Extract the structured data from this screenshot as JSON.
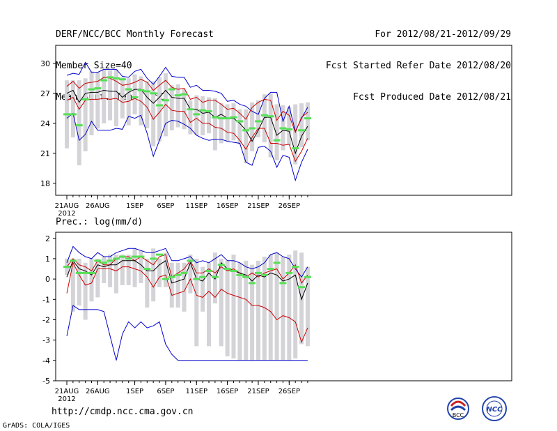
{
  "header": {
    "left": [
      "DERF/NCC/BCC Monthly Forecast",
      "Member Size=40",
      "Mean Surf. Temp.: °C"
    ],
    "right": [
      "For 2012/08/21-2012/09/29",
      "Fcst Started Refer Date 2012/08/20",
      "Fcst Produced Date 2012/08/21"
    ]
  },
  "precip_label": "Prec.: log(mm/d)",
  "url": "http://cmdp.ncc.cma.gov.cn",
  "credit": "GrADS: COLA/IGES",
  "logos": {
    "left": "BCC",
    "right": "NCC"
  },
  "colors": {
    "bar": "#d3d3d8",
    "green": "#55e055",
    "blue": "#0000cc",
    "red": "#cc0000",
    "mean": "#000000"
  },
  "chart_data": [
    {
      "type": "line",
      "title": "Mean Surf. Temp.: °C",
      "ylim": [
        16.8,
        31.8
      ],
      "yticks": [
        18,
        21,
        24,
        27,
        30
      ],
      "xtick_labels": [
        "21AUG",
        "26AUG",
        "1SEP",
        "6SEP",
        "11SEP",
        "16SEP",
        "21SEP",
        "26SEP"
      ],
      "xtick_days": [
        0,
        5,
        11,
        16,
        21,
        26,
        31,
        36
      ],
      "year_label": "2012",
      "days": 40,
      "series": [
        {
          "name": "max",
          "values": [
            28.8,
            29.0,
            28.9,
            30.1,
            29.1,
            29.1,
            29.4,
            29.4,
            29.4,
            28.7,
            28.6,
            29.2,
            29.4,
            28.5,
            27.9,
            28.7,
            29.6,
            28.7,
            28.6,
            28.6,
            27.6,
            27.8,
            27.3,
            27.3,
            27.2,
            27.0,
            26.2,
            26.3,
            25.9,
            25.7,
            25.2,
            24.9,
            26.5,
            27.1,
            27.1,
            24.2,
            25.7,
            23.2,
            24.5,
            25.6
          ]
        },
        {
          "name": "p90",
          "values": [
            27.7,
            28.2,
            27.5,
            28.0,
            28.1,
            28.2,
            28.6,
            28.5,
            28.2,
            27.8,
            27.9,
            28.1,
            28.4,
            28.1,
            27.3,
            27.8,
            28.3,
            27.6,
            27.4,
            27.5,
            26.4,
            26.6,
            26.1,
            26.3,
            26.3,
            25.9,
            25.4,
            25.5,
            25.0,
            24.4,
            25.6,
            26.1,
            26.4,
            26.3,
            24.3,
            25.2,
            24.8,
            23.1,
            24.6,
            25.1
          ]
        },
        {
          "name": "mean",
          "values": [
            27.0,
            27.3,
            26.1,
            27.0,
            27.1,
            27.1,
            27.3,
            27.2,
            27.2,
            26.6,
            27.1,
            27.4,
            27.4,
            26.6,
            26.0,
            26.6,
            27.3,
            26.6,
            26.5,
            26.5,
            25.4,
            25.4,
            25.0,
            25.1,
            24.6,
            24.9,
            24.5,
            24.5,
            24.0,
            23.3,
            22.2,
            23.3,
            24.6,
            24.6,
            22.8,
            23.3,
            23.2,
            21.0,
            22.7,
            23.7
          ]
        },
        {
          "name": "p10",
          "values": [
            26.3,
            26.6,
            25.4,
            26.3,
            26.4,
            26.4,
            26.5,
            26.4,
            26.5,
            26.1,
            26.2,
            26.5,
            26.2,
            25.6,
            24.4,
            25.1,
            25.9,
            25.3,
            25.2,
            25.2,
            24.1,
            24.5,
            24.0,
            24.0,
            23.6,
            23.5,
            23.1,
            23.0,
            22.3,
            21.4,
            22.6,
            23.5,
            23.5,
            22.0,
            22.0,
            21.8,
            21.9,
            20.2,
            21.2,
            22.5
          ]
        },
        {
          "name": "min",
          "values": [
            24.5,
            25.0,
            22.3,
            22.9,
            24.2,
            23.3,
            23.3,
            23.3,
            23.5,
            23.4,
            24.7,
            24.5,
            24.8,
            23.0,
            20.7,
            22.3,
            24.0,
            24.3,
            24.2,
            23.9,
            23.5,
            22.8,
            22.5,
            22.3,
            22.4,
            22.4,
            22.2,
            22.1,
            22.0,
            20.1,
            19.8,
            21.6,
            21.7,
            21.2,
            19.6,
            20.8,
            20.6,
            18.3,
            20.1,
            21.4
          ]
        },
        {
          "name": "green",
          "values": [
            24.9,
            24.9,
            23.8,
            26.4,
            27.4,
            27.5,
            28.3,
            28.6,
            28.5,
            28.4,
            27.4,
            26.6,
            27.3,
            27.2,
            27.0,
            25.8,
            26.3,
            27.4,
            26.8,
            26.9,
            25.4,
            24.9,
            25.3,
            25.2,
            24.6,
            24.5,
            24.5,
            24.6,
            24.2,
            23.3,
            23.5,
            24.2,
            24.8,
            24.7,
            22.3,
            23.5,
            23.4,
            21.5,
            23.3,
            24.5
          ]
        },
        {
          "name": "bar_top",
          "values": [
            28.3,
            28.3,
            28.3,
            28.5,
            29.2,
            29.1,
            29.4,
            29.3,
            29.4,
            28.6,
            28.5,
            28.9,
            28.7,
            28.2,
            28.2,
            28.6,
            29.0,
            27.8,
            27.9,
            27.4,
            26.3,
            26.8,
            26.7,
            26.6,
            26.5,
            26.0,
            25.9,
            26.0,
            25.4,
            25.4,
            26.1,
            26.3,
            26.9,
            27.0,
            25.9,
            25.8,
            25.6,
            25.9,
            26.0,
            26.1
          ]
        },
        {
          "name": "bar_bottom",
          "values": [
            21.5,
            22.6,
            19.8,
            21.2,
            22.8,
            23.5,
            24.0,
            24.3,
            23.7,
            24.5,
            23.8,
            24.9,
            23.8,
            23.5,
            21.7,
            22.2,
            22.7,
            23.3,
            23.6,
            23.4,
            22.9,
            22.8,
            22.8,
            23.0,
            21.3,
            22.0,
            22.2,
            22.3,
            21.9,
            20.0,
            21.2,
            22.6,
            22.1,
            20.6,
            20.3,
            21.3,
            21.8,
            19.9,
            21.6,
            22.3
          ]
        }
      ]
    },
    {
      "type": "line",
      "title": "Prec.: log(mm/d)",
      "ylim": [
        -5,
        2.3
      ],
      "yticks": [
        -5,
        -4,
        -3,
        -2,
        -1,
        0,
        1,
        2
      ],
      "xtick_labels": [
        "21AUG",
        "26AUG",
        "1SEP",
        "6SEP",
        "11SEP",
        "16SEP",
        "21SEP",
        "26SEP"
      ],
      "xtick_days": [
        0,
        5,
        11,
        16,
        21,
        26,
        31,
        36
      ],
      "year_label": "2012",
      "days": 40,
      "series": [
        {
          "name": "max",
          "values": [
            0.8,
            1.6,
            1.3,
            1.1,
            1.0,
            1.3,
            1.1,
            1.1,
            1.3,
            1.4,
            1.5,
            1.5,
            1.4,
            1.3,
            1.3,
            1.4,
            1.5,
            0.9,
            0.9,
            1.0,
            1.1,
            0.8,
            0.9,
            0.8,
            1.0,
            1.2,
            0.9,
            0.9,
            0.8,
            0.6,
            0.5,
            0.6,
            0.8,
            1.2,
            1.3,
            1.1,
            1.0,
            0.5,
            0.1,
            0.6
          ]
        },
        {
          "name": "p90",
          "values": [
            0.6,
            1.0,
            0.7,
            0.6,
            0.4,
            0.9,
            0.7,
            0.7,
            1.0,
            1.1,
            1.1,
            0.9,
            1.1,
            0.9,
            0.7,
            1.1,
            1.2,
            0.1,
            0.3,
            0.5,
            0.9,
            0.3,
            0.3,
            0.5,
            0.3,
            0.6,
            0.4,
            0.5,
            0.3,
            0.1,
            0.3,
            0.1,
            0.3,
            0.4,
            0.5,
            0.0,
            0.3,
            0.7,
            -0.2,
            0.2
          ]
        },
        {
          "name": "mean",
          "values": [
            0.1,
            0.9,
            0.5,
            0.4,
            0.2,
            0.7,
            0.6,
            0.7,
            0.7,
            0.9,
            0.9,
            0.9,
            0.7,
            0.4,
            0.4,
            0.7,
            0.9,
            -0.2,
            -0.1,
            0.0,
            0.8,
            0.0,
            -0.1,
            0.3,
            0.0,
            0.8,
            0.5,
            0.4,
            0.3,
            0.2,
            -0.1,
            0.2,
            0.1,
            0.3,
            0.2,
            -0.1,
            0.0,
            0.2,
            -1.0,
            -0.2
          ]
        },
        {
          "name": "p10",
          "values": [
            -0.7,
            0.8,
            0.2,
            -0.3,
            -0.2,
            0.5,
            0.5,
            0.5,
            0.4,
            0.6,
            0.6,
            0.5,
            0.4,
            0.1,
            -0.4,
            0.1,
            0.2,
            -0.8,
            -0.7,
            -0.6,
            0.0,
            -0.8,
            -0.9,
            -0.6,
            -0.9,
            -0.5,
            -0.7,
            -0.8,
            -0.9,
            -1.0,
            -1.3,
            -1.3,
            -1.4,
            -1.6,
            -2.0,
            -1.8,
            -1.9,
            -2.1,
            -3.1,
            -2.4
          ]
        },
        {
          "name": "min",
          "values": [
            -2.8,
            -1.3,
            -1.5,
            -1.5,
            -1.5,
            -1.5,
            -1.6,
            -2.8,
            -4.0,
            -2.7,
            -2.1,
            -2.4,
            -2.1,
            -2.4,
            -2.3,
            -2.1,
            -3.2,
            -3.7,
            -4.0,
            -4.0,
            -4.0,
            -4.0,
            -4.0,
            -4.0,
            -4.0,
            -4.0,
            -4.0,
            -4.0,
            -4.0,
            -4.0,
            -4.0,
            -4.0,
            -4.0,
            -4.0,
            -4.0,
            -4.0,
            -4.0,
            -4.0,
            -4.0,
            -4.0
          ]
        },
        {
          "name": "green",
          "values": [
            0.6,
            0.9,
            0.3,
            0.3,
            0.3,
            0.9,
            0.8,
            0.9,
            1.0,
            1.1,
            1.0,
            1.1,
            1.1,
            0.5,
            1.0,
            1.2,
            0.0,
            0.1,
            0.2,
            0.3,
            0.9,
            0.0,
            0.1,
            0.4,
            0.1,
            0.7,
            0.5,
            0.4,
            0.2,
            0.1,
            -0.2,
            0.3,
            0.2,
            0.5,
            0.8,
            -0.2,
            0.3,
            0.6,
            -0.4,
            0.1
          ]
        },
        {
          "name": "bar_top",
          "values": [
            1.0,
            1.0,
            1.0,
            0.8,
            1.0,
            1.0,
            1.1,
            1.2,
            1.2,
            1.2,
            1.2,
            1.5,
            1.4,
            1.0,
            1.5,
            1.0,
            1.3,
            0.8,
            0.8,
            0.8,
            1.2,
            1.0,
            0.6,
            0.8,
            1.3,
            1.0,
            0.9,
            1.2,
            0.8,
            0.9,
            0.7,
            0.9,
            1.1,
            1.2,
            1.3,
            1.1,
            1.2,
            1.4,
            1.3,
            0.6
          ]
        },
        {
          "name": "bar_bottom",
          "values": [
            0.2,
            -1.6,
            -1.3,
            -2.0,
            -1.1,
            -0.9,
            -0.2,
            -0.4,
            -0.7,
            -0.3,
            -0.3,
            -0.4,
            -0.2,
            -1.4,
            -1.1,
            -0.4,
            -0.4,
            -1.4,
            -1.4,
            -1.6,
            -0.7,
            -3.3,
            -1.6,
            -3.3,
            -1.2,
            -3.3,
            -3.8,
            -3.9,
            -4.0,
            -4.0,
            -4.0,
            -4.0,
            -4.0,
            -4.0,
            -4.0,
            -4.0,
            -4.0,
            -3.9,
            -3.2,
            -3.3
          ]
        }
      ]
    }
  ]
}
